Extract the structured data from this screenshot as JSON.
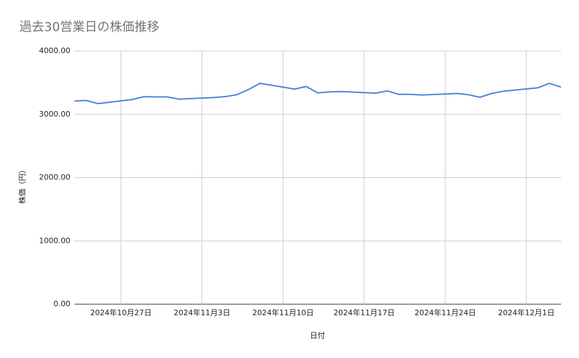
{
  "chart_data": {
    "type": "line",
    "title": "過去30営業日の株価推移",
    "x_label": "日付",
    "y_label": "株価（円）",
    "x": [
      "2024-10-23",
      "2024-10-24",
      "2024-10-25",
      "2024-10-28",
      "2024-10-29",
      "2024-10-30",
      "2024-10-31",
      "2024-11-01",
      "2024-11-04",
      "2024-11-05",
      "2024-11-06",
      "2024-11-07",
      "2024-11-08",
      "2024-11-11",
      "2024-11-12",
      "2024-11-13",
      "2024-11-14",
      "2024-11-15",
      "2024-11-18",
      "2024-11-19",
      "2024-11-20",
      "2024-11-21",
      "2024-11-22",
      "2024-11-25",
      "2024-11-26",
      "2024-11-27",
      "2024-11-28",
      "2024-11-29",
      "2024-12-02",
      "2024-12-03",
      "2024-12-04"
    ],
    "series": [
      {
        "name": "株価",
        "color": "#4a86d4",
        "values": [
          3210,
          3220,
          3170,
          3235,
          3280,
          3275,
          3275,
          3240,
          3265,
          3280,
          3310,
          3390,
          3490,
          3400,
          3440,
          3340,
          3355,
          3360,
          3335,
          3370,
          3315,
          3315,
          3305,
          3330,
          3310,
          3270,
          3330,
          3365,
          3420,
          3490,
          3430
        ]
      }
    ],
    "xlim": [
      "2024-10-23",
      "2024-12-04"
    ],
    "xticks": [
      {
        "value": "2024-10-27",
        "label": "2024年10月27日"
      },
      {
        "value": "2024-11-03",
        "label": "2024年11月3日"
      },
      {
        "value": "2024-11-10",
        "label": "2024年11月10日"
      },
      {
        "value": "2024-11-17",
        "label": "2024年11月17日"
      },
      {
        "value": "2024-11-24",
        "label": "2024年11月24日"
      },
      {
        "value": "2024-12-01",
        "label": "2024年12月1日"
      }
    ],
    "ylim": [
      0,
      4000
    ],
    "yticks": [
      {
        "value": 0,
        "label": "0.00"
      },
      {
        "value": 1000,
        "label": "1000.00"
      },
      {
        "value": 2000,
        "label": "2000.00"
      },
      {
        "value": 3000,
        "label": "3000.00"
      },
      {
        "value": 4000,
        "label": "4000.00"
      }
    ],
    "grid": true
  }
}
